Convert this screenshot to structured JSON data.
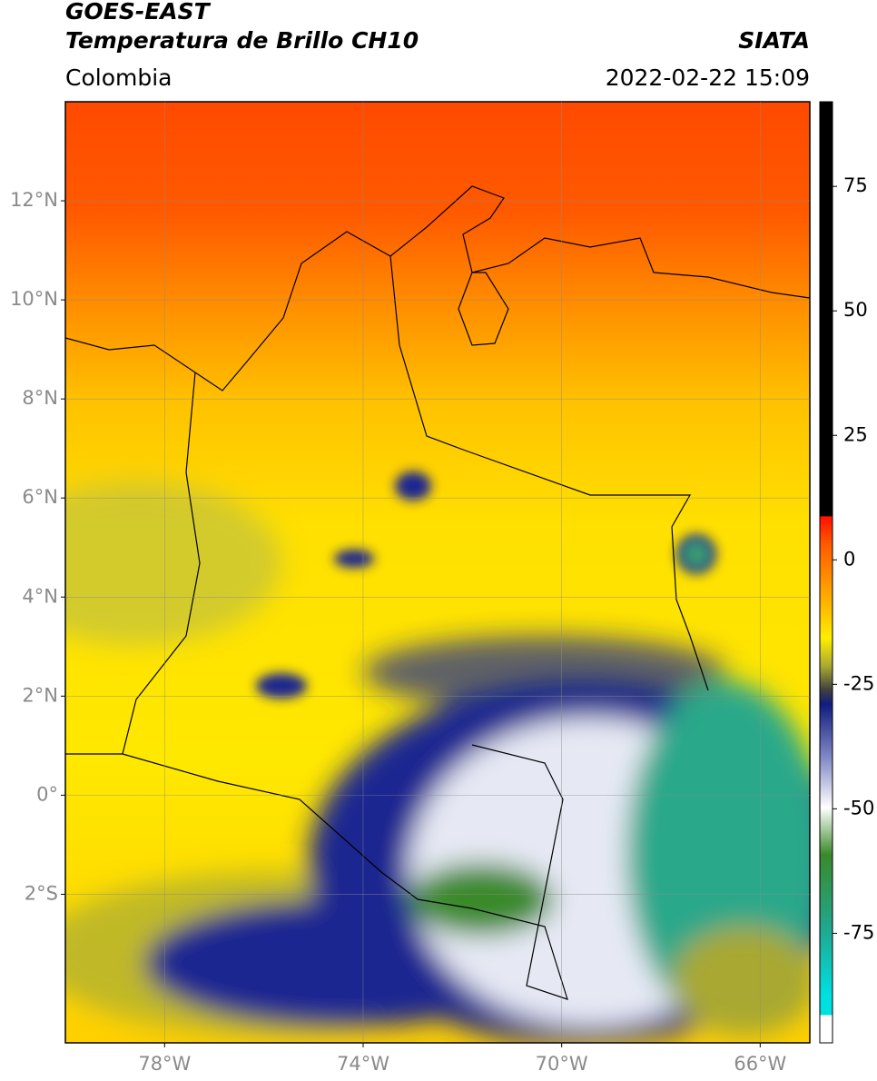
{
  "header": {
    "title": "GOES-EAST",
    "subtitle": "Temperatura de Brillo CH10",
    "source": "SIATA",
    "region": "Colombia",
    "datetime": "2022-02-22 15:09"
  },
  "map": {
    "lon_range": [
      -80,
      -65
    ],
    "lat_range": [
      -5,
      14
    ],
    "lat_ticks": [
      {
        "value": 12,
        "label": "12°N"
      },
      {
        "value": 10,
        "label": "10°N"
      },
      {
        "value": 8,
        "label": "8°N"
      },
      {
        "value": 6,
        "label": "6°N"
      },
      {
        "value": 4,
        "label": "4°N"
      },
      {
        "value": 2,
        "label": "2°N"
      },
      {
        "value": 0,
        "label": "0°"
      },
      {
        "value": -2,
        "label": "2°S"
      }
    ],
    "lon_ticks": [
      {
        "value": -78,
        "label": "78°W"
      },
      {
        "value": -74,
        "label": "74°W"
      },
      {
        "value": -70,
        "label": "70°W"
      },
      {
        "value": -66,
        "label": "66°W"
      }
    ]
  },
  "colorbar": {
    "range": [
      -97,
      92
    ],
    "ticks": [
      75,
      50,
      25,
      0,
      -25,
      -50,
      -75
    ]
  }
}
